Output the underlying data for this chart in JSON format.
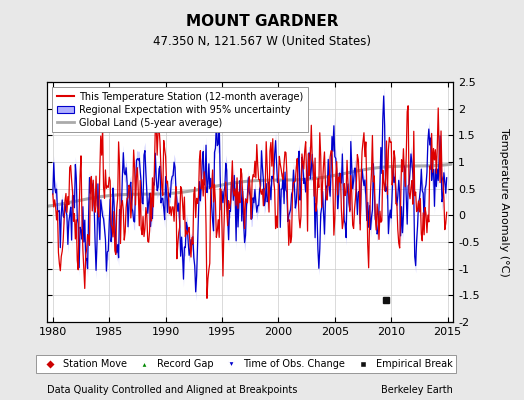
{
  "title": "MOUNT GARDNER",
  "subtitle": "47.350 N, 121.567 W (United States)",
  "xlabel_left": "Data Quality Controlled and Aligned at Breakpoints",
  "xlabel_right": "Berkeley Earth",
  "ylabel": "Temperature Anomaly (°C)",
  "xlim": [
    1979.5,
    2015.5
  ],
  "ylim": [
    -2.0,
    2.5
  ],
  "yticks": [
    -2,
    -1.5,
    -1,
    -0.5,
    0,
    0.5,
    1,
    1.5,
    2,
    2.5
  ],
  "xticks": [
    1980,
    1985,
    1990,
    1995,
    2000,
    2005,
    2010,
    2015
  ],
  "background_color": "#e8e8e8",
  "plot_bg_color": "#ffffff",
  "grid_color": "#cccccc",
  "red_color": "#dd0000",
  "blue_color": "#0000cc",
  "blue_fill_color": "#b0b0ff",
  "gray_color": "#aaaaaa",
  "empirical_break_x": 2009.5,
  "empirical_break_y": -1.58,
  "legend_bottom_items": [
    {
      "label": "Station Move",
      "color": "#cc0000",
      "marker": "D"
    },
    {
      "label": "Record Gap",
      "color": "#008800",
      "marker": "^"
    },
    {
      "label": "Time of Obs. Change",
      "color": "#0000cc",
      "marker": "v"
    },
    {
      "label": "Empirical Break",
      "color": "#000000",
      "marker": "s"
    }
  ]
}
